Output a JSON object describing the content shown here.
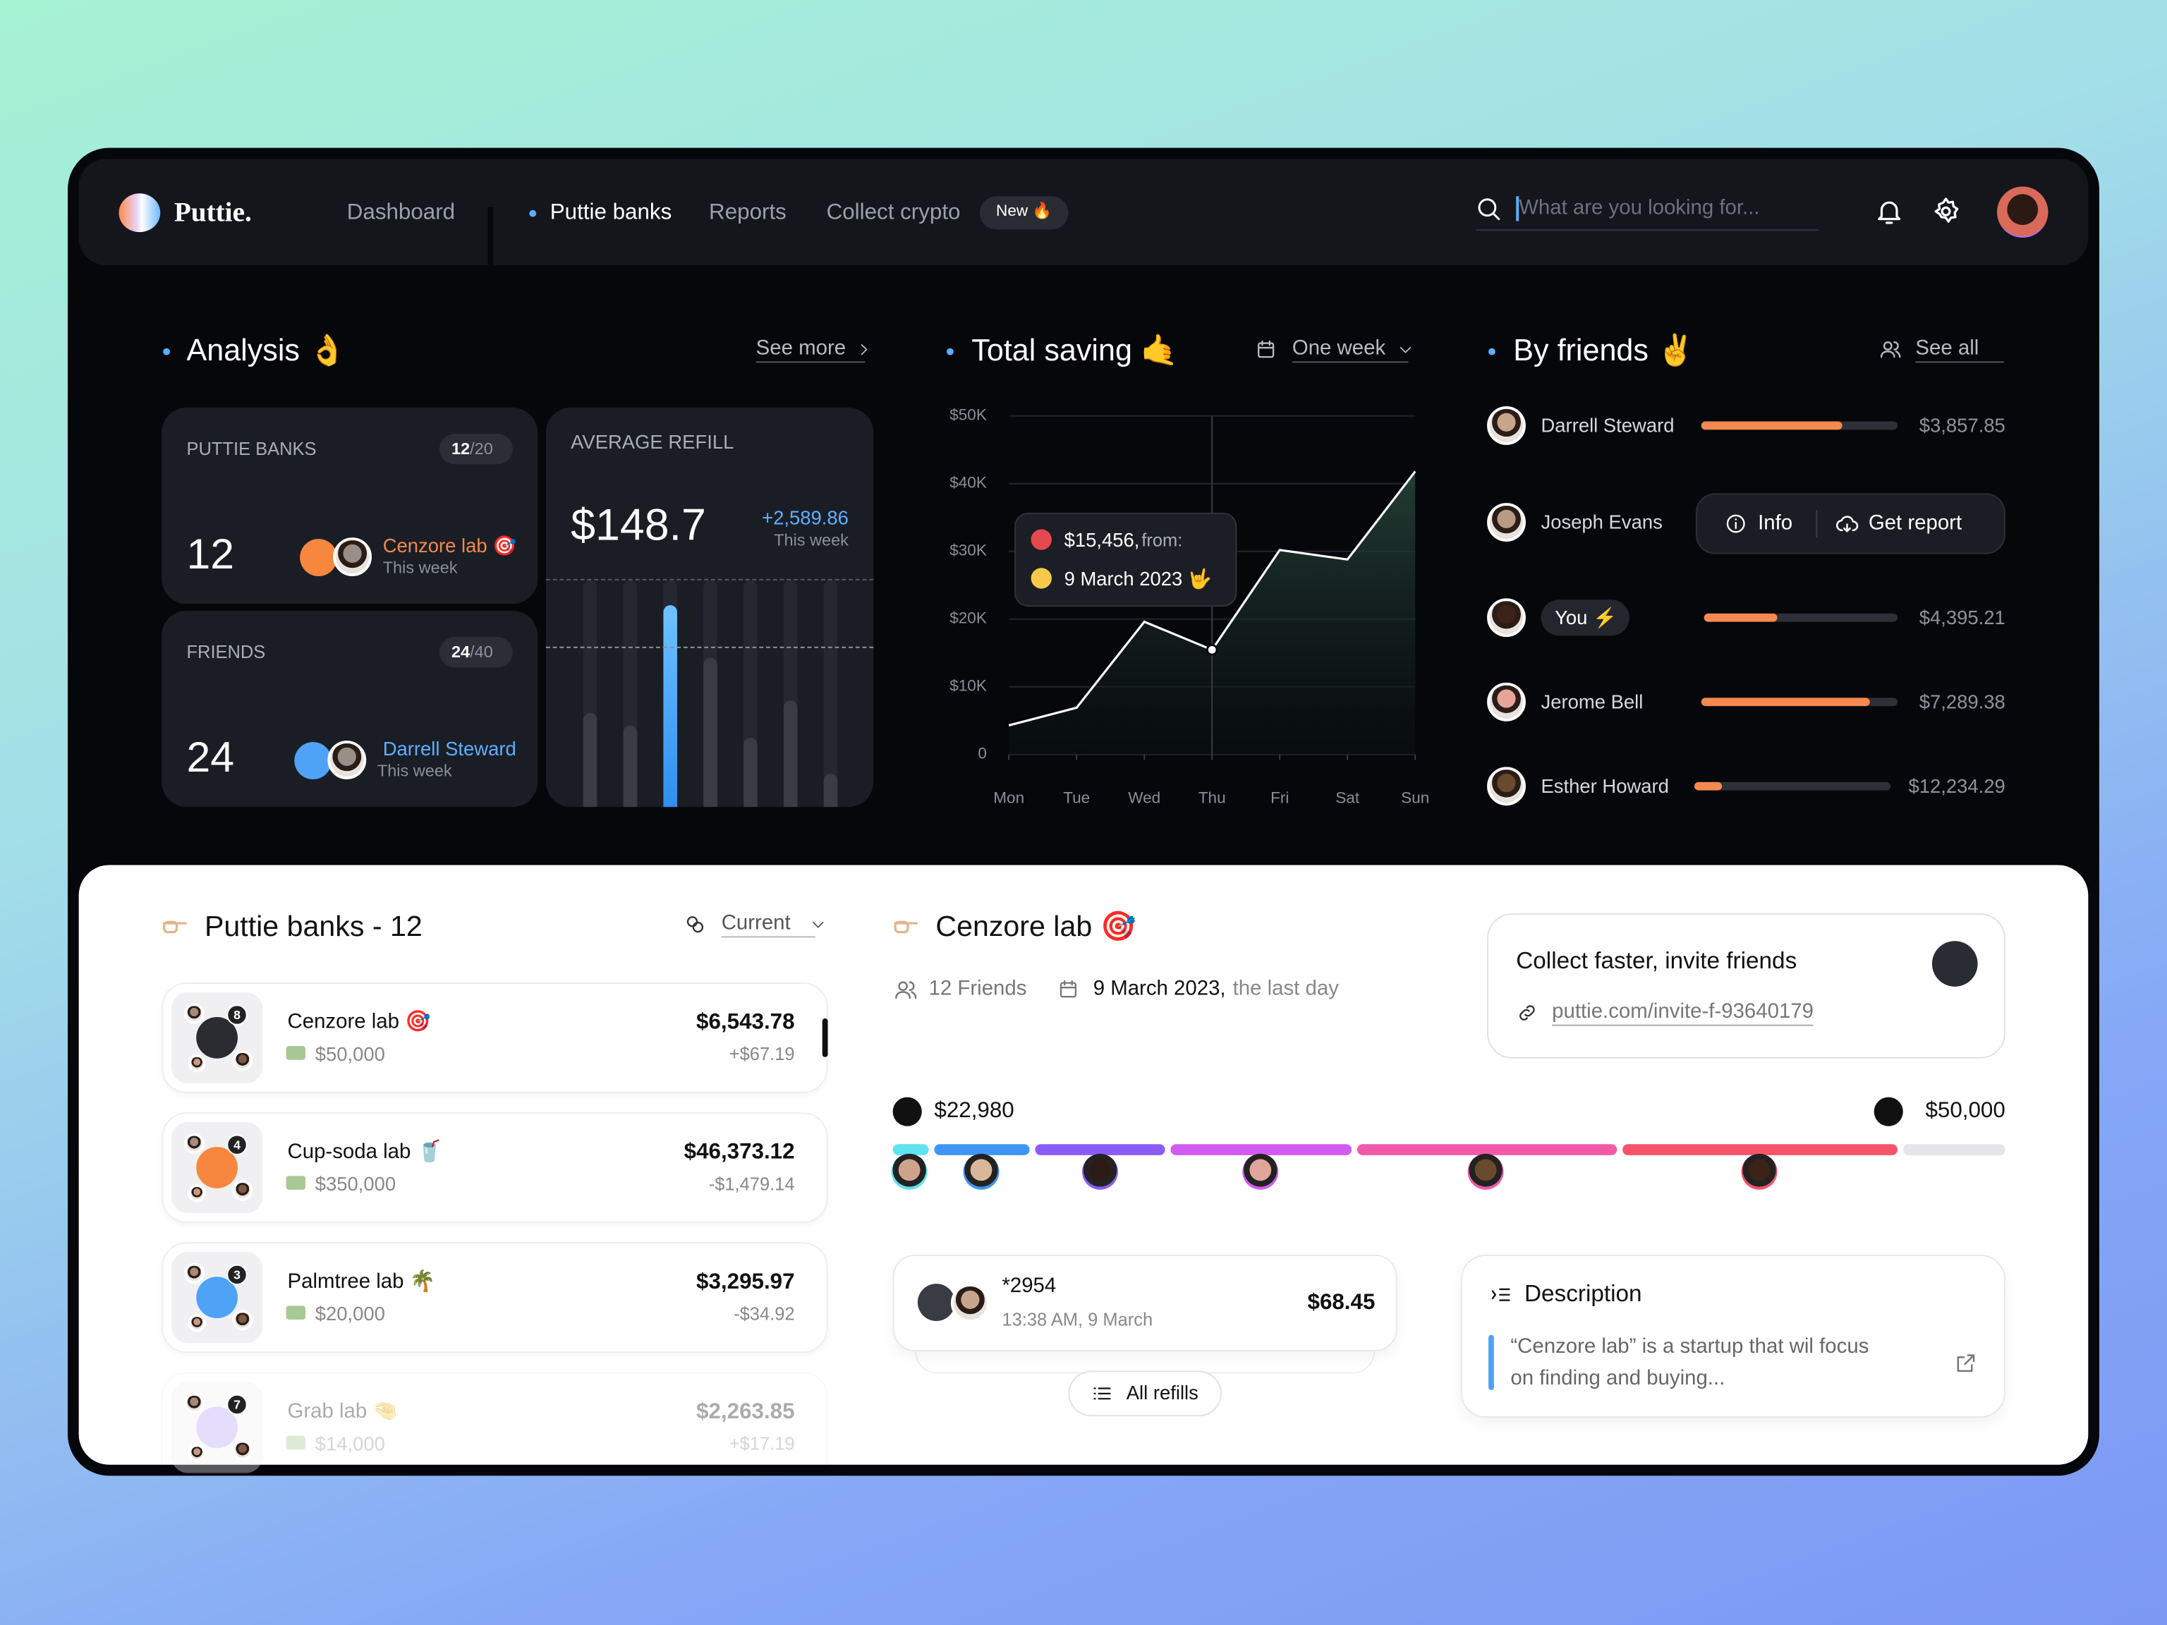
{
  "nav": {
    "brand": "Puttie.",
    "links": [
      "Dashboard",
      "Puttie banks",
      "Reports",
      "Collect crypto"
    ],
    "badge": "New 🔥",
    "search_placeholder": "What are you looking for..."
  },
  "analysis": {
    "title": "Analysis 👌",
    "see_more": "See more",
    "banks": {
      "label": "PUTTIE BANKS",
      "value": "12",
      "badge_value": "12",
      "badge_total": "/20",
      "who": "Cenzore lab 🎯",
      "when": "This week"
    },
    "friends": {
      "label": "FRIENDS",
      "value": "24",
      "badge_value": "24",
      "badge_total": "/40",
      "who": "Darrell Steward",
      "when": "This week"
    },
    "refill": {
      "label": "AVERAGE REFILL",
      "value": "$148.7",
      "change": "+2,589.86",
      "when": "This week"
    }
  },
  "chart_data": {
    "type": "line",
    "title": "Total saving 🤙",
    "range": "One week",
    "categories": [
      "Mon",
      "Tue",
      "Wed",
      "Thu",
      "Fri",
      "Sat",
      "Sun"
    ],
    "series": [
      {
        "name": "Total saving",
        "color": "#ffffff",
        "values": [
          4300,
          6900,
          19600,
          15456,
          30200,
          28800,
          41800
        ]
      }
    ],
    "ylim": [
      0,
      50000
    ],
    "yticks": [
      0,
      {
        "value": 10000,
        "label": "$10K"
      },
      {
        "value": 20000,
        "label": "$20K"
      },
      {
        "value": 30000,
        "label": "$30K"
      },
      {
        "value": 40000,
        "label": "$40K"
      },
      {
        "value": 50000,
        "label": "$50K"
      }
    ],
    "grid": true,
    "tooltip": {
      "amount": "$15,456,",
      "from": "from:",
      "date": "9 March 2023 🤟"
    }
  },
  "friends": {
    "title": "By friends ✌️",
    "see_all": "See all",
    "info": "Info",
    "get_report": "Get report",
    "rows": [
      {
        "name": "Darrell Steward",
        "amount": "$3,857.85"
      },
      {
        "name": "Joseph Evans"
      },
      {
        "name": "You ⚡",
        "amount": "$4,395.21"
      },
      {
        "name": "Jerome Bell",
        "amount": "$7,289.38"
      },
      {
        "name": "Esther Howard",
        "amount": "$12,234.29"
      }
    ]
  },
  "banks": {
    "title": "Puttie banks - 12",
    "filter": "Current",
    "items": [
      {
        "name": "Cenzore lab 🎯",
        "members": "8",
        "goal": "$50,000",
        "balance": "$6,543.78",
        "change": "+$67.19"
      },
      {
        "name": "Cup-soda lab 🥤",
        "members": "4",
        "goal": "$350,000",
        "balance": "$46,373.12",
        "change": "-$1,479.14"
      },
      {
        "name": "Palmtree lab 🌴",
        "members": "3",
        "goal": "$20,000",
        "balance": "$3,295.97",
        "change": "-$34.92"
      },
      {
        "name": "Grab lab 🤏",
        "members": "7",
        "goal": "$14,000",
        "balance": "$2,263.85",
        "change": "+$17.19"
      }
    ]
  },
  "detail": {
    "title": "Cenzore lab 🎯",
    "friends": "12 Friends",
    "date": "9 March 2023,",
    "date_note": "the last day",
    "invite_title": "Collect faster, invite friends",
    "invite_link": "puttie.com/invite-f-93640179",
    "current": "$22,980",
    "target": "$50,000",
    "refill": {
      "id": "*2954",
      "time": "13:38 AM, 9 March",
      "amount": "$68.45"
    },
    "all_refills": "All refills",
    "description_title": "Description",
    "description_lines": [
      "“Cenzore lab” is a startup that wil focus",
      "on finding and buying..."
    ]
  }
}
